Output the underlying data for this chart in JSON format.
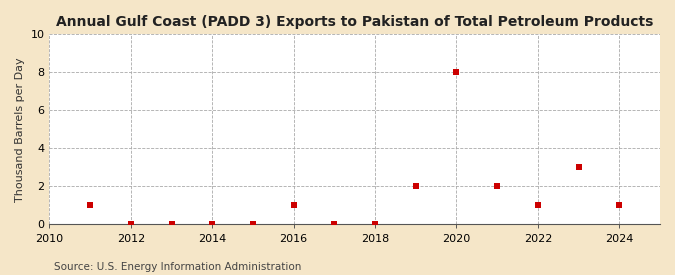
{
  "title": "Annual Gulf Coast (PADD 3) Exports to Pakistan of Total Petroleum Products",
  "ylabel": "Thousand Barrels per Day",
  "source": "Source: U.S. Energy Information Administration",
  "fig_background_color": "#f5e6c8",
  "plot_background_color": "#ffffff",
  "marker_color": "#cc0000",
  "marker": "s",
  "marker_size": 4,
  "years": [
    2011,
    2012,
    2013,
    2014,
    2015,
    2016,
    2017,
    2018,
    2019,
    2020,
    2021,
    2022,
    2023,
    2024
  ],
  "values": [
    1,
    0,
    0,
    0,
    0,
    1,
    0,
    0,
    2,
    8,
    2,
    1,
    3,
    1
  ],
  "xlim": [
    2010,
    2025
  ],
  "ylim": [
    0,
    10
  ],
  "yticks": [
    0,
    2,
    4,
    6,
    8,
    10
  ],
  "xticks": [
    2010,
    2012,
    2014,
    2016,
    2018,
    2020,
    2022,
    2024
  ],
  "grid_color": "#aaaaaa",
  "grid_linestyle": "--",
  "grid_linewidth": 0.6,
  "title_fontsize": 10,
  "ylabel_fontsize": 8,
  "tick_fontsize": 8,
  "source_fontsize": 7.5
}
